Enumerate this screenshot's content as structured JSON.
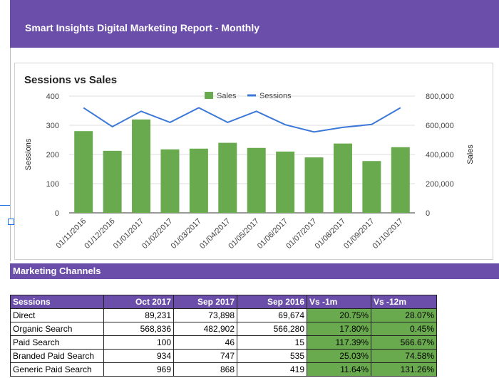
{
  "header": {
    "title": "Smart Insights Digital Marketing Report - Monthly",
    "bg": "#6a4ea9"
  },
  "chart_data": {
    "type": "bar",
    "title": "Sessions vs Sales",
    "categories": [
      "01/11/2016",
      "01/12/2016",
      "01/01/2017",
      "01/02/2017",
      "01/03/2017",
      "01/04/2017",
      "01/05/2017",
      "01/06/2017",
      "01/07/2017",
      "01/08/2017",
      "01/09/2017",
      "01/10/2017"
    ],
    "series": [
      {
        "name": "Sales",
        "type": "bar",
        "axis": "right",
        "color": "#6aaa4e",
        "values": [
          560000,
          425000,
          640000,
          435000,
          440000,
          480000,
          445000,
          420000,
          380000,
          475000,
          355000,
          450000
        ]
      },
      {
        "name": "Sessions",
        "type": "line",
        "axis": "left",
        "color": "#3c78d8",
        "values": [
          360,
          295,
          348,
          310,
          360,
          310,
          348,
          302,
          277,
          293,
          303,
          360
        ]
      }
    ],
    "ylabel": "Sessions",
    "y2label": "Sales",
    "ylim": [
      0,
      400
    ],
    "y2lim": [
      0,
      800000
    ],
    "yticks": [
      "0",
      "100",
      "200",
      "300",
      "400"
    ],
    "y2ticks": [
      "0",
      "200,000",
      "400,000",
      "600,000",
      "800,000"
    ],
    "legend_position": "top"
  },
  "section": {
    "title": "Marketing Channels"
  },
  "table": {
    "headers": [
      "Sessions",
      "Oct 2017",
      "Sep 2017",
      "Sep 2016",
      "Vs -1m",
      "Vs -12m"
    ],
    "rows": [
      [
        "Direct",
        "89,231",
        "73,898",
        "69,674",
        "20.75%",
        "28.07%"
      ],
      [
        "Organic Search",
        "568,836",
        "482,902",
        "566,280",
        "17.80%",
        "0.45%"
      ],
      [
        "Paid Search",
        "100",
        "46",
        "15",
        "117.39%",
        "566.67%"
      ],
      [
        "Branded Paid Search",
        "934",
        "747",
        "535",
        "25.03%",
        "74.58%"
      ],
      [
        "Generic Paid Search",
        "969",
        "868",
        "419",
        "11.64%",
        "131.26%"
      ]
    ]
  }
}
